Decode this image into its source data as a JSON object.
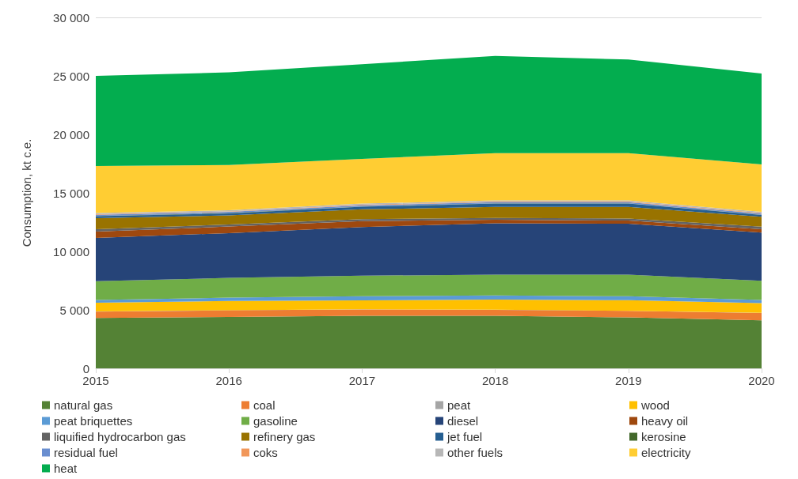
{
  "chart_data": {
    "type": "area",
    "stacked": true,
    "ylabel": "Consumption, kt c.e.",
    "x": [
      2015,
      2016,
      2017,
      2018,
      2019,
      2020
    ],
    "xlim": [
      2015,
      2020
    ],
    "xticks": [
      2015,
      2016,
      2017,
      2018,
      2019,
      2020
    ],
    "ylim": [
      0,
      30000
    ],
    "yticks": [
      {
        "value": 0,
        "label": "0"
      },
      {
        "value": 5000,
        "label": "5 000"
      },
      {
        "value": 10000,
        "label": "10 000"
      },
      {
        "value": 15000,
        "label": "15 000"
      },
      {
        "value": 20000,
        "label": "20 000"
      },
      {
        "value": 25000,
        "label": "25 000"
      },
      {
        "value": 30000,
        "label": "30 000"
      }
    ],
    "grid": "y",
    "legend": "bottom",
    "series": [
      {
        "name": "natural gas",
        "color": "#548235",
        "values": [
          4300,
          4400,
          4500,
          4500,
          4350,
          4100
        ]
      },
      {
        "name": "coal",
        "color": "#ed7d31",
        "values": [
          550,
          560,
          540,
          500,
          560,
          630
        ]
      },
      {
        "name": "peat",
        "color": "#a5a5a5",
        "values": [
          10,
          10,
          10,
          10,
          10,
          10
        ]
      },
      {
        "name": "wood",
        "color": "#ffc000",
        "values": [
          740,
          790,
          760,
          860,
          900,
          840
        ]
      },
      {
        "name": "peat briquettes",
        "color": "#5b9bd5",
        "values": [
          250,
          280,
          350,
          360,
          340,
          270
        ]
      },
      {
        "name": "gasoline",
        "color": "#70ad47",
        "values": [
          1600,
          1690,
          1760,
          1780,
          1850,
          1640
        ]
      },
      {
        "name": "diesel",
        "color": "#264478",
        "values": [
          3700,
          3830,
          4160,
          4390,
          4350,
          4110
        ]
      },
      {
        "name": "heavy oil",
        "color": "#9e480e",
        "values": [
          540,
          560,
          500,
          300,
          270,
          290
        ]
      },
      {
        "name": "liquified hydrocarbon gas",
        "color": "#636363",
        "values": [
          200,
          180,
          180,
          150,
          180,
          220
        ]
      },
      {
        "name": "refinery gas",
        "color": "#997300",
        "values": [
          940,
          780,
          830,
          950,
          990,
          840
        ]
      },
      {
        "name": "jet fuel",
        "color": "#255e91",
        "values": [
          170,
          160,
          220,
          280,
          280,
          150
        ]
      },
      {
        "name": "kerosine",
        "color": "#43682b",
        "values": [
          30,
          30,
          30,
          30,
          30,
          30
        ]
      },
      {
        "name": "residual fuel",
        "color": "#698ed0",
        "values": [
          100,
          100,
          100,
          100,
          100,
          100
        ]
      },
      {
        "name": "coks",
        "color": "#f1975a",
        "values": [
          40,
          40,
          40,
          40,
          40,
          40
        ]
      },
      {
        "name": "other fuels",
        "color": "#b7b7b7",
        "values": [
          100,
          100,
          100,
          100,
          100,
          100
        ]
      },
      {
        "name": "electricity",
        "color": "#ffcd33",
        "values": [
          4020,
          3870,
          3820,
          4050,
          4050,
          4070
        ]
      },
      {
        "name": "heat",
        "color": "#03ad4f",
        "values": [
          7710,
          7920,
          8100,
          8300,
          8000,
          7760
        ]
      }
    ]
  }
}
